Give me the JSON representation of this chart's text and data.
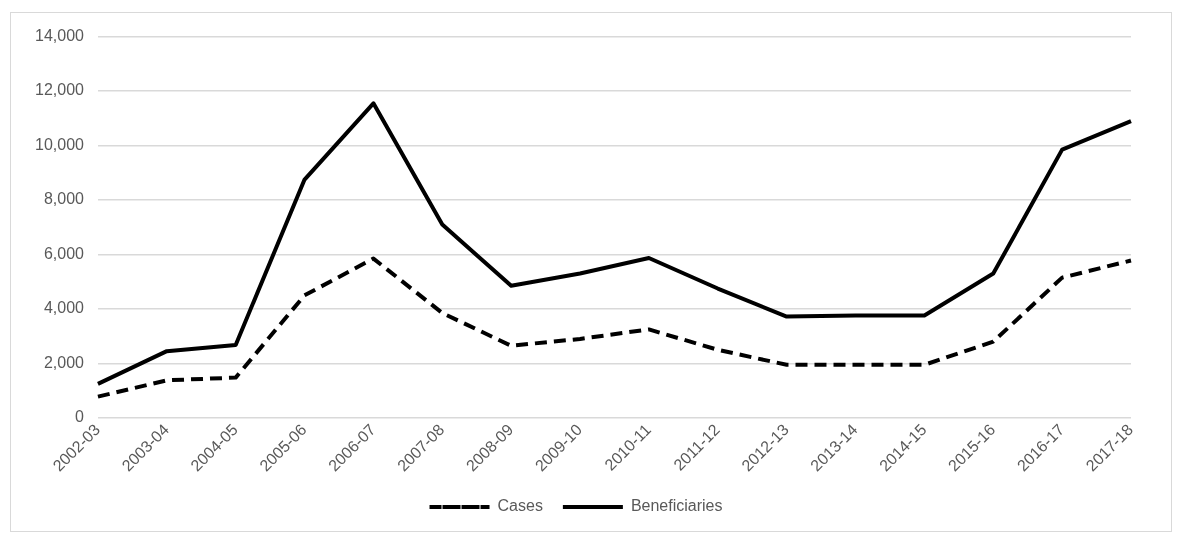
{
  "chart_data": {
    "type": "line",
    "categories": [
      "2002-03",
      "2003-04",
      "2004-05",
      "2005-06",
      "2006-07",
      "2007-08",
      "2008-09",
      "2009-10",
      "2010-11",
      "2011-12",
      "2012-13",
      "2013-14",
      "2014-15",
      "2015-16",
      "2016-17",
      "2017-18"
    ],
    "series": [
      {
        "name": "Cases",
        "color": "#000000",
        "line_style": "dashed",
        "values": [
          780,
          1380,
          1480,
          4500,
          5850,
          3850,
          2650,
          2900,
          3250,
          2500,
          1950,
          1950,
          1950,
          2800,
          5150,
          5780
        ]
      },
      {
        "name": "Beneficiaries",
        "color": "#000000",
        "line_style": "solid",
        "values": [
          1250,
          2450,
          2680,
          8750,
          11550,
          7100,
          4850,
          5300,
          5870,
          4750,
          3720,
          3760,
          3760,
          5300,
          9850,
          10900
        ]
      }
    ],
    "ylim": [
      0,
      14000
    ],
    "yticks": [
      {
        "value": 0,
        "label": "0"
      },
      {
        "value": 2000,
        "label": "2,000"
      },
      {
        "value": 4000,
        "label": "4,000"
      },
      {
        "value": 6000,
        "label": "6,000"
      },
      {
        "value": 8000,
        "label": "8,000"
      },
      {
        "value": 10000,
        "label": "10,000"
      },
      {
        "value": 12000,
        "label": "12,000"
      },
      {
        "value": 14000,
        "label": "14,000"
      }
    ],
    "grid": "y",
    "legend": "bottom",
    "marker": "none"
  }
}
